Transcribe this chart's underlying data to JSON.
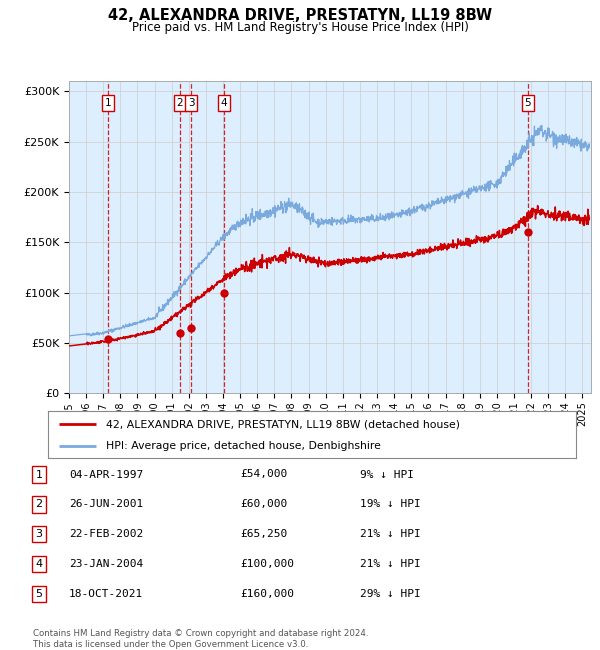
{
  "title": "42, ALEXANDRA DRIVE, PRESTATYN, LL19 8BW",
  "subtitle": "Price paid vs. HM Land Registry's House Price Index (HPI)",
  "ylabel_ticks": [
    "£0",
    "£50K",
    "£100K",
    "£150K",
    "£200K",
    "£250K",
    "£300K"
  ],
  "ytick_values": [
    0,
    50000,
    100000,
    150000,
    200000,
    250000,
    300000
  ],
  "ylim": [
    0,
    310000
  ],
  "xlim_start": 1995.0,
  "xlim_end": 2025.5,
  "transactions": [
    {
      "num": 1,
      "date": "04-APR-1997",
      "year": 1997.27,
      "price": 54000,
      "pct": "9% ↓ HPI"
    },
    {
      "num": 2,
      "date": "26-JUN-2001",
      "year": 2001.48,
      "price": 60000,
      "pct": "19% ↓ HPI"
    },
    {
      "num": 3,
      "date": "22-FEB-2002",
      "year": 2002.14,
      "price": 65250,
      "pct": "21% ↓ HPI"
    },
    {
      "num": 4,
      "date": "23-JAN-2004",
      "year": 2004.06,
      "price": 100000,
      "pct": "21% ↓ HPI"
    },
    {
      "num": 5,
      "date": "18-OCT-2021",
      "year": 2021.8,
      "price": 160000,
      "pct": "29% ↓ HPI"
    }
  ],
  "hpi_line_color": "#7aaadd",
  "price_line_color": "#cc0000",
  "dot_color": "#cc0000",
  "vline_color": "#cc0000",
  "shade_color": "#ddeeff",
  "grid_color": "#cccccc",
  "legend_label_red": "42, ALEXANDRA DRIVE, PRESTATYN, LL19 8BW (detached house)",
  "legend_label_blue": "HPI: Average price, detached house, Denbighshire",
  "footer": "Contains HM Land Registry data © Crown copyright and database right 2024.\nThis data is licensed under the Open Government Licence v3.0."
}
